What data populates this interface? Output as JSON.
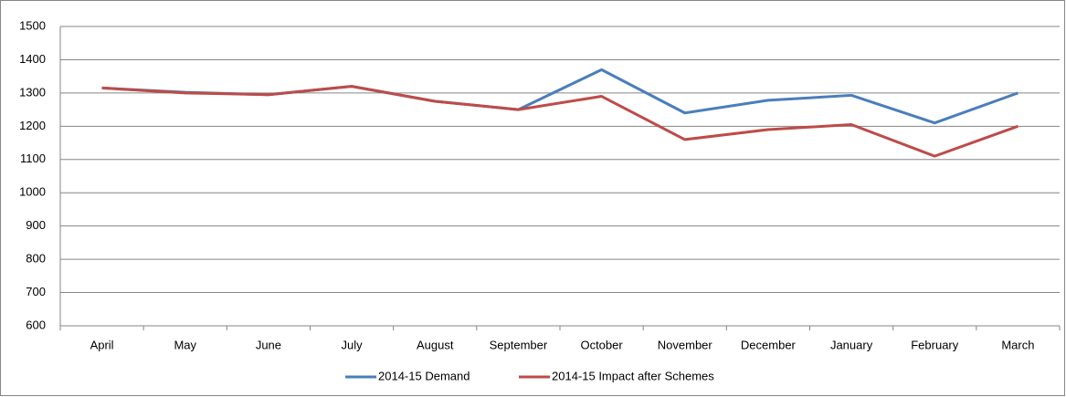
{
  "chart_data": {
    "type": "line",
    "categories": [
      "April",
      "May",
      "June",
      "July",
      "August",
      "September",
      "October",
      "November",
      "December",
      "January",
      "February",
      "March"
    ],
    "series": [
      {
        "name": "2014-15 Demand",
        "color": "#4a7ebb",
        "values": [
          1315,
          1302,
          1295,
          1320,
          1275,
          1250,
          1370,
          1240,
          1278,
          1293,
          1210,
          1300
        ]
      },
      {
        "name": "2014-15 Impact after Schemes",
        "color": "#be4b48",
        "values": [
          1315,
          1300,
          1295,
          1320,
          1275,
          1250,
          1290,
          1160,
          1190,
          1205,
          1110,
          1200
        ]
      }
    ],
    "ylim": [
      600,
      1500
    ],
    "yticks": [
      600,
      700,
      800,
      900,
      1000,
      1100,
      1200,
      1300,
      1400,
      1500
    ],
    "grid": true,
    "legend": "bottom"
  }
}
